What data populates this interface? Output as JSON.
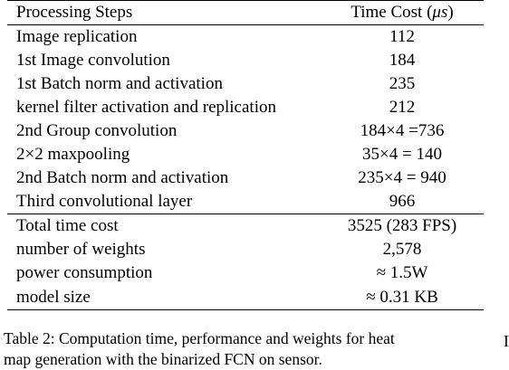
{
  "table": {
    "header": {
      "step_label": "Processing Steps",
      "time_label_prefix": "Time Cost (",
      "time_label_unit": "μs",
      "time_label_suffix": ")"
    },
    "steps": [
      {
        "step": "Image replication",
        "time": "112"
      },
      {
        "step": "1st Image convolution",
        "time": "184"
      },
      {
        "step": "1st Batch norm and activation",
        "time": "235"
      },
      {
        "step": "kernel filter activation and replication",
        "time": "212"
      },
      {
        "step": "2nd Group convolution",
        "time": "184×4 =736"
      },
      {
        "step": "2×2 maxpooling",
        "time": "35×4 = 140"
      },
      {
        "step": "2nd Batch norm and activation",
        "time": "235×4 = 940"
      },
      {
        "step": "Third convolutional layer",
        "time": "966"
      }
    ],
    "totals": [
      {
        "step": "Total time cost",
        "time": "3525 (283 FPS)"
      },
      {
        "step": "number of weights",
        "time": "2,578"
      },
      {
        "step": "power consumption",
        "time": "≈ 1.5W"
      },
      {
        "step": "model size",
        "time": "≈ 0.31 KB"
      }
    ]
  },
  "caption": {
    "line1": "Table 2: Computation time, performance and weights for heat",
    "line2": "map generation with the binarized FCN on sensor."
  },
  "margin_mark": "I"
}
